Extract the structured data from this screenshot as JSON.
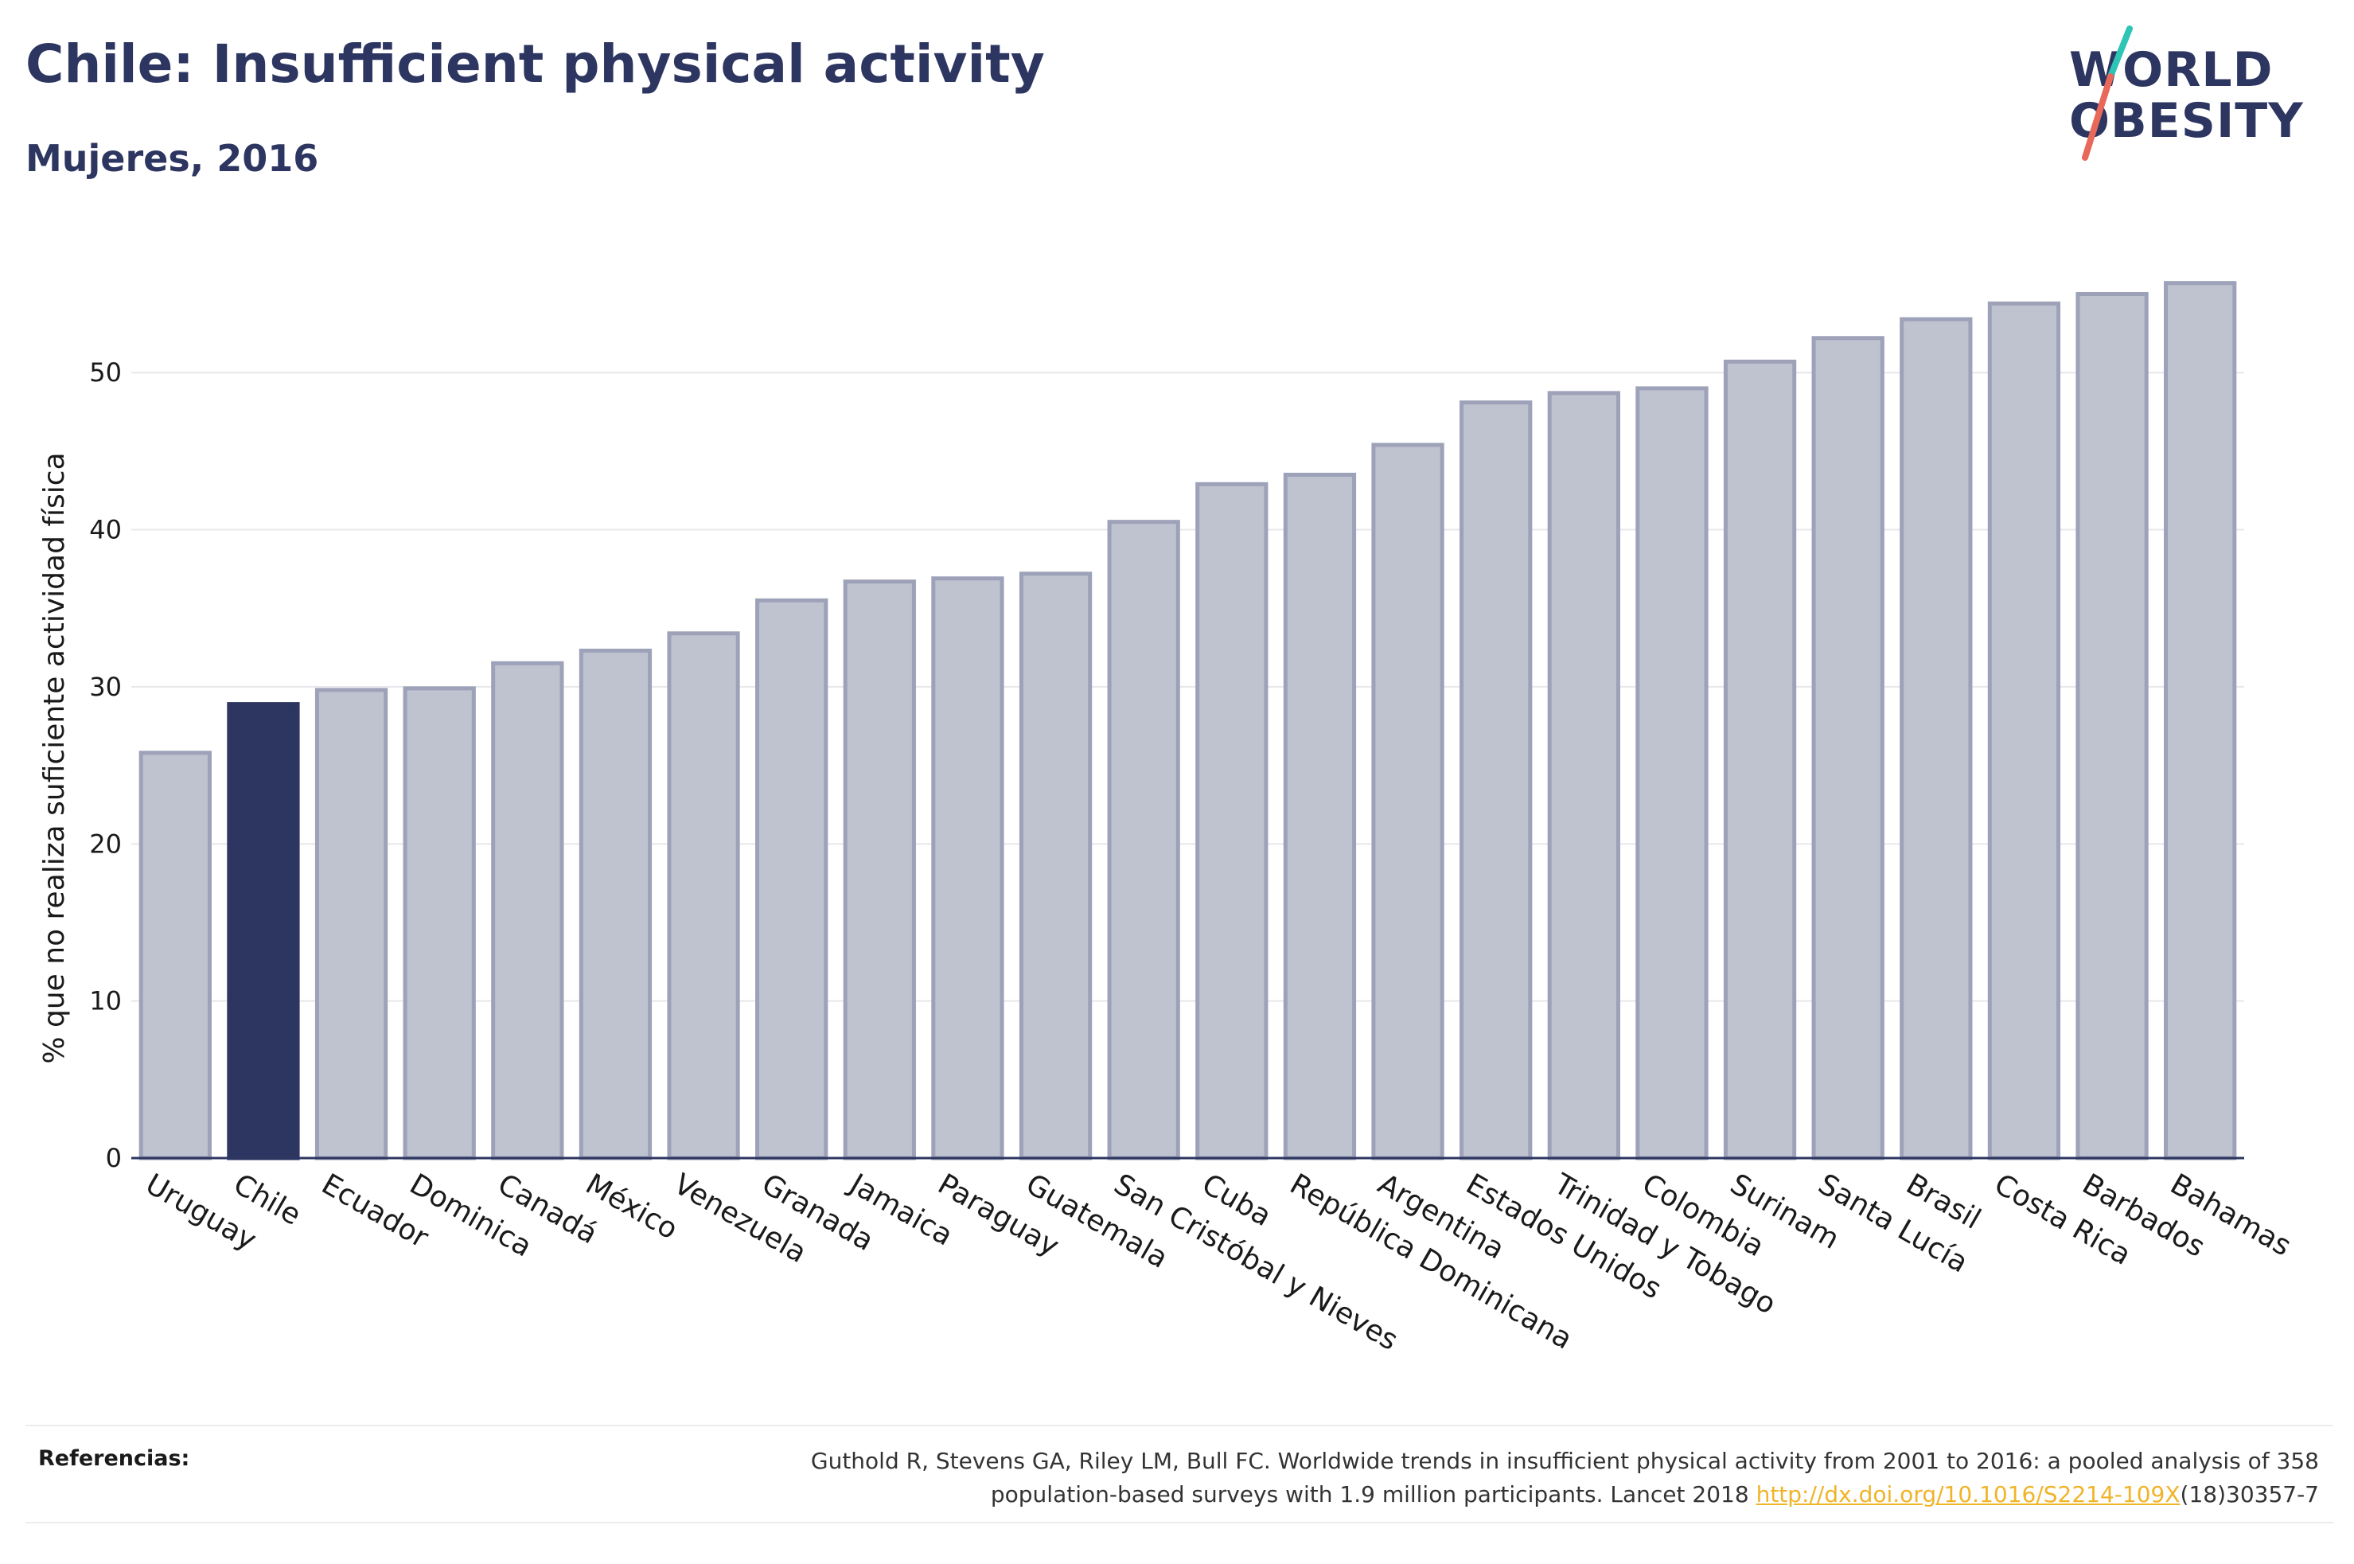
{
  "header": {
    "title": "Chile: Insufficient physical activity",
    "subtitle": "Mujeres, 2016"
  },
  "logo": {
    "line1": "WORLD",
    "line2": "OBESITY",
    "colors": {
      "text": "#2d3561",
      "slash_top": "#2ec4b6",
      "slash_bottom": "#e8685a"
    }
  },
  "chart_data": {
    "type": "bar",
    "ylabel": "% que no realiza suficiente actividad física",
    "xlabel": "",
    "ylim": [
      0,
      57
    ],
    "yticks": [
      0,
      10,
      20,
      30,
      40,
      50
    ],
    "grid": true,
    "highlight": "Chile",
    "colors": {
      "bar": "#bfc2cf",
      "bar_border": "#9da2b8",
      "highlight": "#2d3561"
    },
    "categories": [
      "Uruguay",
      "Chile",
      "Ecuador",
      "Dominica",
      "Canadá",
      "México",
      "Venezuela",
      "Granada",
      "Jamaica",
      "Paraguay",
      "Guatemala",
      "San Cristóbal y Nieves",
      "Cuba",
      "República Dominicana",
      "Argentina",
      "Estados Unidos",
      "Trinidad y Tobago",
      "Colombia",
      "Surinam",
      "Santa Lucía",
      "Brasil",
      "Costa Rica",
      "Barbados",
      "Bahamas"
    ],
    "values": [
      25.8,
      28.9,
      29.8,
      29.9,
      31.5,
      32.3,
      33.4,
      35.5,
      36.7,
      36.9,
      37.2,
      40.5,
      42.9,
      43.5,
      45.4,
      48.1,
      48.7,
      49.0,
      50.7,
      52.2,
      53.4,
      54.4,
      55.0,
      55.7
    ]
  },
  "references": {
    "label": "Referencias:",
    "text_line1": "Guthold R, Stevens GA, Riley LM, Bull FC. Worldwide trends in insufficient physical activity from 2001 to 2016: a pooled analysis of 358",
    "text_line2_pre": "population-based surveys with 1.9 million participants. Lancet 2018 ",
    "link": "http://dx.doi.org/10.1016/S2214-109X",
    "text_line2_post": "(18)30357-7"
  }
}
